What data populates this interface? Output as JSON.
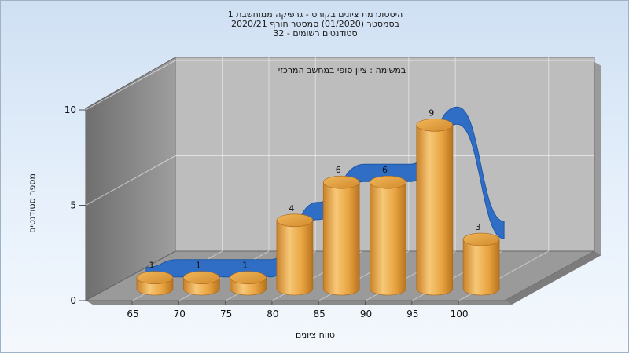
{
  "title_lines": [
    "היסטוגרמת ציונים בקורס - גרפיקה ממוחשבת 1",
    "בסמסטר  (01/2020)  סמסטר חורף  2020/21",
    "סטודנטים רשומים - 32"
  ],
  "colors": {
    "bar": "#e8a440",
    "curve": "#2f6ec4",
    "back_wall": "#bdbdbd",
    "side_wall": "#8a8a8a",
    "floor": "#9a9a9a"
  },
  "chart_data": {
    "type": "bar",
    "title": "היסטוגרמת ציונים בקורס - גרפיקה ממוחשבת 1",
    "subtitle": "במשימה : ציון סופי במחשב המרכזי",
    "xlabel": "טווח ציונים",
    "ylabel": "מספר סטודנטים",
    "categories": [
      "65",
      "70",
      "75",
      "80",
      "85",
      "90",
      "95",
      "100"
    ],
    "values": [
      1,
      1,
      1,
      4,
      6,
      6,
      9,
      3
    ],
    "ylim": [
      0,
      10
    ],
    "yticks": [
      0,
      5,
      10
    ],
    "grid": true,
    "curve": "smoothed distribution ribbon"
  }
}
